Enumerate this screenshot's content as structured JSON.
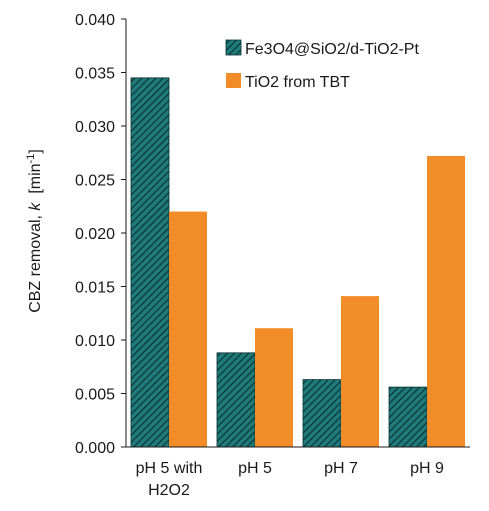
{
  "chart_data": {
    "type": "bar",
    "categories": [
      "pH 5 with H2O2",
      "pH 5",
      "pH 7",
      "pH 9"
    ],
    "category_lines": [
      [
        "pH 5 with",
        "H2O2"
      ],
      [
        "pH 5"
      ],
      [
        "pH 7"
      ],
      [
        "pH 9"
      ]
    ],
    "series": [
      {
        "name": "Fe3O4@SiO2/d-TiO2-Pt",
        "values": [
          0.0345,
          0.0088,
          0.0063,
          0.0056
        ],
        "color": "#1f7a7a",
        "pattern": "diagonal-hatch"
      },
      {
        "name": "TiO2 from TBT",
        "values": [
          0.022,
          0.0111,
          0.0141,
          0.0272
        ],
        "color": "#f28c28",
        "pattern": "solid"
      }
    ],
    "ylabel": {
      "prefix": "CBZ removal, ",
      "italic": "k",
      "unit_open": "  [min",
      "unit_sup": "-1",
      "unit_close": "]"
    },
    "ylim": [
      0,
      0.04
    ],
    "yticks": [
      0.0,
      0.005,
      0.01,
      0.015,
      0.02,
      0.025,
      0.03,
      0.035,
      0.04
    ],
    "ytick_labels": [
      "0.000",
      "0.005",
      "0.010",
      "0.015",
      "0.020",
      "0.025",
      "0.030",
      "0.035",
      "0.040"
    ],
    "grid": false,
    "legend_position": "top-right"
  }
}
